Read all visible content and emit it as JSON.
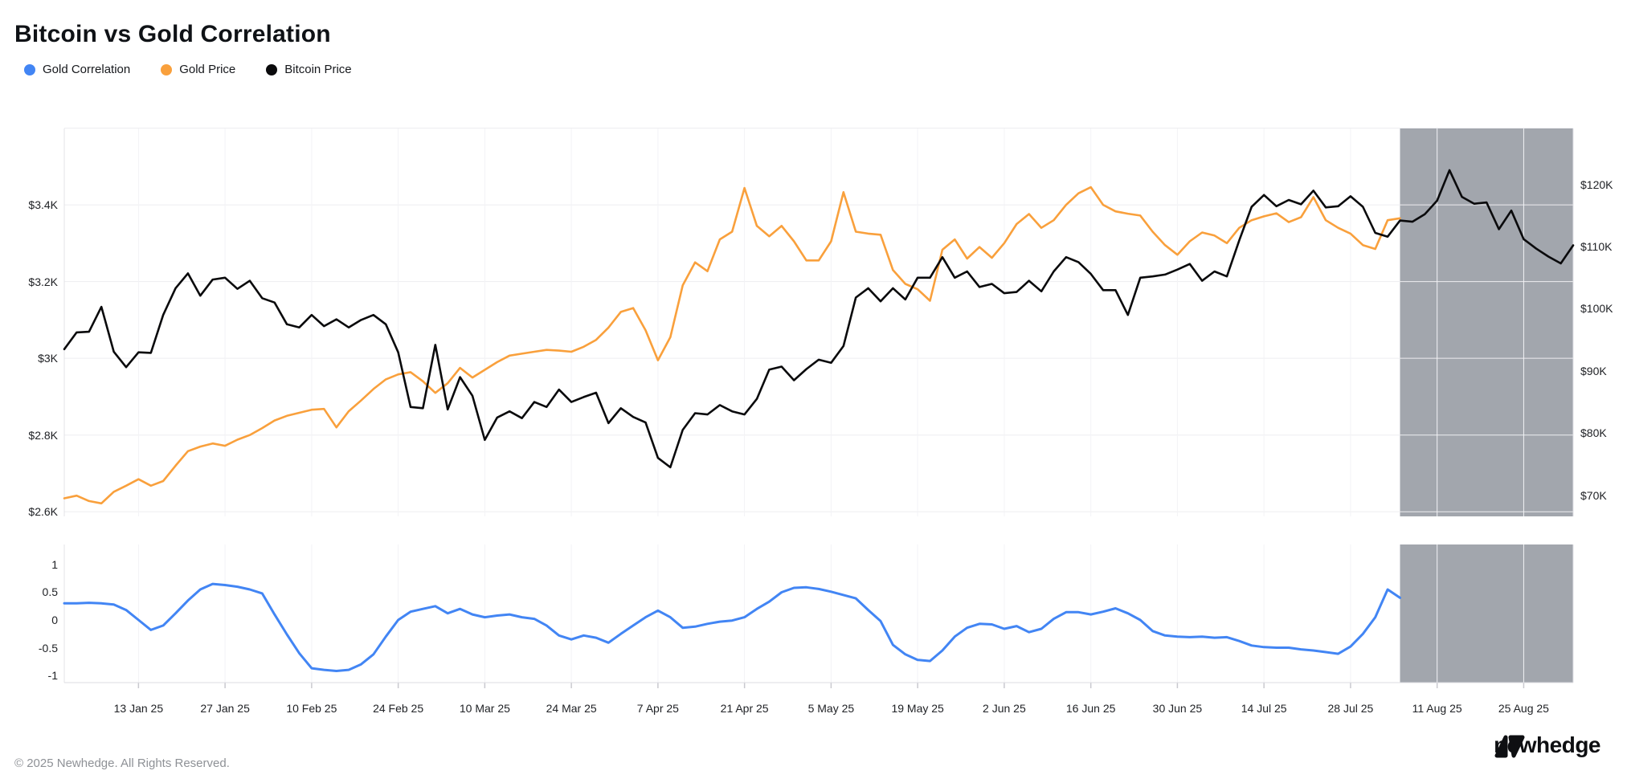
{
  "title": "Bitcoin vs Gold Correlation",
  "legend": [
    {
      "label": "Gold Correlation",
      "color": "#4285F4"
    },
    {
      "label": "Gold Price",
      "color": "#F9A03C"
    },
    {
      "label": "Bitcoin Price",
      "color": "#0A0A0C"
    }
  ],
  "footer": {
    "copyright": "© 2025 Newhedge. All Rights Reserved.",
    "brand": "newhedge"
  },
  "chart_data": {
    "type": "line",
    "title": "Bitcoin vs Gold Correlation",
    "x_unit": "days since 1 Jan 2025",
    "x_max_day": 244,
    "grid": true,
    "legend_position": "top-left",
    "x_ticks": [
      {
        "label": "13 Jan 25",
        "day": 12
      },
      {
        "label": "27 Jan 25",
        "day": 26
      },
      {
        "label": "10 Feb 25",
        "day": 40
      },
      {
        "label": "24 Feb 25",
        "day": 54
      },
      {
        "label": "10 Mar 25",
        "day": 68
      },
      {
        "label": "24 Mar 25",
        "day": 82
      },
      {
        "label": "7 Apr 25",
        "day": 96
      },
      {
        "label": "21 Apr 25",
        "day": 110
      },
      {
        "label": "5 May 25",
        "day": 124
      },
      {
        "label": "19 May 25",
        "day": 138
      },
      {
        "label": "2 Jun 25",
        "day": 152
      },
      {
        "label": "16 Jun 25",
        "day": 166
      },
      {
        "label": "30 Jun 25",
        "day": 180
      },
      {
        "label": "14 Jul 25",
        "day": 194
      },
      {
        "label": "28 Jul 25",
        "day": 208
      },
      {
        "label": "11 Aug 25",
        "day": 222
      },
      {
        "label": "25 Aug 25",
        "day": 236
      }
    ],
    "highlight_region": {
      "start_day": 216,
      "end_day": 244,
      "color": "#A2A6AD"
    },
    "main_chart": {
      "gold_axis": {
        "side": "left",
        "ylim": [
          2588,
          3599
        ],
        "ticks": [
          {
            "label": "$3.4K",
            "value": 3400
          },
          {
            "label": "$3.2K",
            "value": 3200
          },
          {
            "label": "$3K",
            "value": 3000
          },
          {
            "label": "$2.8K",
            "value": 2800
          },
          {
            "label": "$2.6K",
            "value": 2600
          }
        ],
        "gridline_values": [
          3600,
          3400,
          3200,
          3000,
          2800,
          2600
        ]
      },
      "btc_axis": {
        "side": "right",
        "ylim": [
          66.6,
          129.0
        ],
        "ticks": [
          {
            "label": "$120K",
            "value": 120
          },
          {
            "label": "$110K",
            "value": 110
          },
          {
            "label": "$100K",
            "value": 100
          },
          {
            "label": "$90K",
            "value": 90
          },
          {
            "label": "$80K",
            "value": 80
          },
          {
            "label": "$70K",
            "value": 70
          }
        ]
      },
      "series": [
        {
          "name": "Gold Price",
          "color": "#F9A03C",
          "axis": "gold",
          "unit": "USD",
          "start_day": 0,
          "step_days": 2,
          "values": [
            2635,
            2642,
            2628,
            2622,
            2652,
            2668,
            2685,
            2668,
            2680,
            2720,
            2758,
            2770,
            2778,
            2772,
            2788,
            2800,
            2818,
            2838,
            2850,
            2858,
            2866,
            2868,
            2820,
            2862,
            2890,
            2920,
            2945,
            2958,
            2964,
            2940,
            2910,
            2935,
            2975,
            2950,
            2970,
            2990,
            3007,
            3012,
            3017,
            3022,
            3020,
            3017,
            3030,
            3048,
            3080,
            3121,
            3131,
            3073,
            2995,
            3055,
            3190,
            3250,
            3227,
            3310,
            3330,
            3444,
            3345,
            3318,
            3345,
            3305,
            3255,
            3255,
            3305,
            3433,
            3330,
            3325,
            3322,
            3230,
            3194,
            3180,
            3150,
            3283,
            3310,
            3260,
            3290,
            3262,
            3300,
            3350,
            3376,
            3340,
            3360,
            3400,
            3430,
            3446,
            3400,
            3383,
            3377,
            3372,
            3330,
            3295,
            3270,
            3305,
            3328,
            3320,
            3300,
            3340,
            3360,
            3370,
            3378,
            3355,
            3368,
            3420,
            3360,
            3340,
            3325,
            3295,
            3285,
            3360,
            3365
          ]
        },
        {
          "name": "Bitcoin Price",
          "color": "#0A0A0C",
          "axis": "btc",
          "unit": "USD thousands",
          "start_day": 0,
          "step_days": 2,
          "values": [
            93.5,
            96.2,
            96.3,
            100.3,
            93.1,
            90.6,
            93.0,
            92.9,
            99.0,
            103.3,
            105.7,
            102.1,
            104.7,
            105.0,
            103.2,
            104.5,
            101.7,
            101.0,
            97.5,
            97.0,
            99.0,
            97.2,
            98.3,
            97.0,
            98.2,
            99.0,
            97.5,
            93.0,
            84.2,
            84.0,
            94.2,
            83.8,
            89.0,
            86.0,
            78.9,
            82.5,
            83.5,
            82.4,
            85.0,
            84.2,
            87.0,
            85.0,
            85.8,
            86.5,
            81.6,
            84.0,
            82.6,
            81.7,
            76.0,
            74.5,
            80.5,
            83.2,
            83.0,
            84.5,
            83.5,
            83.0,
            85.5,
            90.2,
            90.7,
            88.5,
            90.3,
            91.8,
            91.3,
            94.0,
            101.8,
            103.3,
            101.2,
            103.3,
            101.5,
            105.0,
            105.0,
            108.3,
            105.0,
            106.0,
            103.5,
            104.0,
            102.5,
            102.7,
            104.5,
            102.8,
            106.0,
            108.3,
            107.5,
            105.6,
            103.0,
            103.0,
            99.0,
            105.0,
            105.2,
            105.5,
            106.3,
            107.2,
            104.5,
            106.0,
            105.2,
            111.0,
            116.4,
            118.3,
            116.5,
            117.5,
            116.8,
            119.0,
            116.3,
            116.5,
            118.1,
            116.4,
            112.2,
            111.6,
            114.2,
            114.0,
            115.2,
            117.4,
            122.3,
            118.0,
            116.9,
            117.1,
            112.8,
            115.8,
            111.2,
            109.7,
            108.4,
            107.3,
            110.2
          ]
        }
      ]
    },
    "correlation_chart": {
      "axis": {
        "side": "left",
        "ylim": [
          -1.13,
          1.362
        ],
        "ticks": [
          {
            "label": "1",
            "value": 1
          },
          {
            "label": "0.5",
            "value": 0.5
          },
          {
            "label": "0",
            "value": 0
          },
          {
            "label": "-0.5",
            "value": -0.5
          },
          {
            "label": "-1",
            "value": -1
          }
        ]
      },
      "series": [
        {
          "name": "Gold Correlation",
          "color": "#4285F4",
          "start_day": 0,
          "step_days": 2,
          "values": [
            0.3,
            0.3,
            0.31,
            0.3,
            0.28,
            0.18,
            0.0,
            -0.18,
            -0.1,
            0.12,
            0.35,
            0.55,
            0.65,
            0.63,
            0.6,
            0.55,
            0.48,
            0.1,
            -0.26,
            -0.6,
            -0.87,
            -0.9,
            -0.92,
            -0.9,
            -0.8,
            -0.62,
            -0.3,
            0.0,
            0.15,
            0.2,
            0.25,
            0.12,
            0.2,
            0.1,
            0.05,
            0.08,
            0.1,
            0.05,
            0.02,
            -0.1,
            -0.28,
            -0.35,
            -0.28,
            -0.32,
            -0.41,
            -0.25,
            -0.1,
            0.05,
            0.17,
            0.05,
            -0.14,
            -0.12,
            -0.07,
            -0.03,
            -0.01,
            0.05,
            0.2,
            0.33,
            0.5,
            0.58,
            0.59,
            0.56,
            0.51,
            0.45,
            0.39,
            0.18,
            -0.02,
            -0.45,
            -0.62,
            -0.72,
            -0.74,
            -0.55,
            -0.3,
            -0.14,
            -0.07,
            -0.08,
            -0.16,
            -0.11,
            -0.22,
            -0.16,
            0.02,
            0.14,
            0.14,
            0.1,
            0.15,
            0.21,
            0.12,
            0.0,
            -0.2,
            -0.28,
            -0.3,
            -0.31,
            -0.3,
            -0.32,
            -0.31,
            -0.38,
            -0.46,
            -0.49,
            -0.5,
            -0.5,
            -0.53,
            -0.55,
            -0.58,
            -0.61,
            -0.48,
            -0.25,
            0.05,
            0.55,
            0.4
          ]
        }
      ]
    }
  }
}
